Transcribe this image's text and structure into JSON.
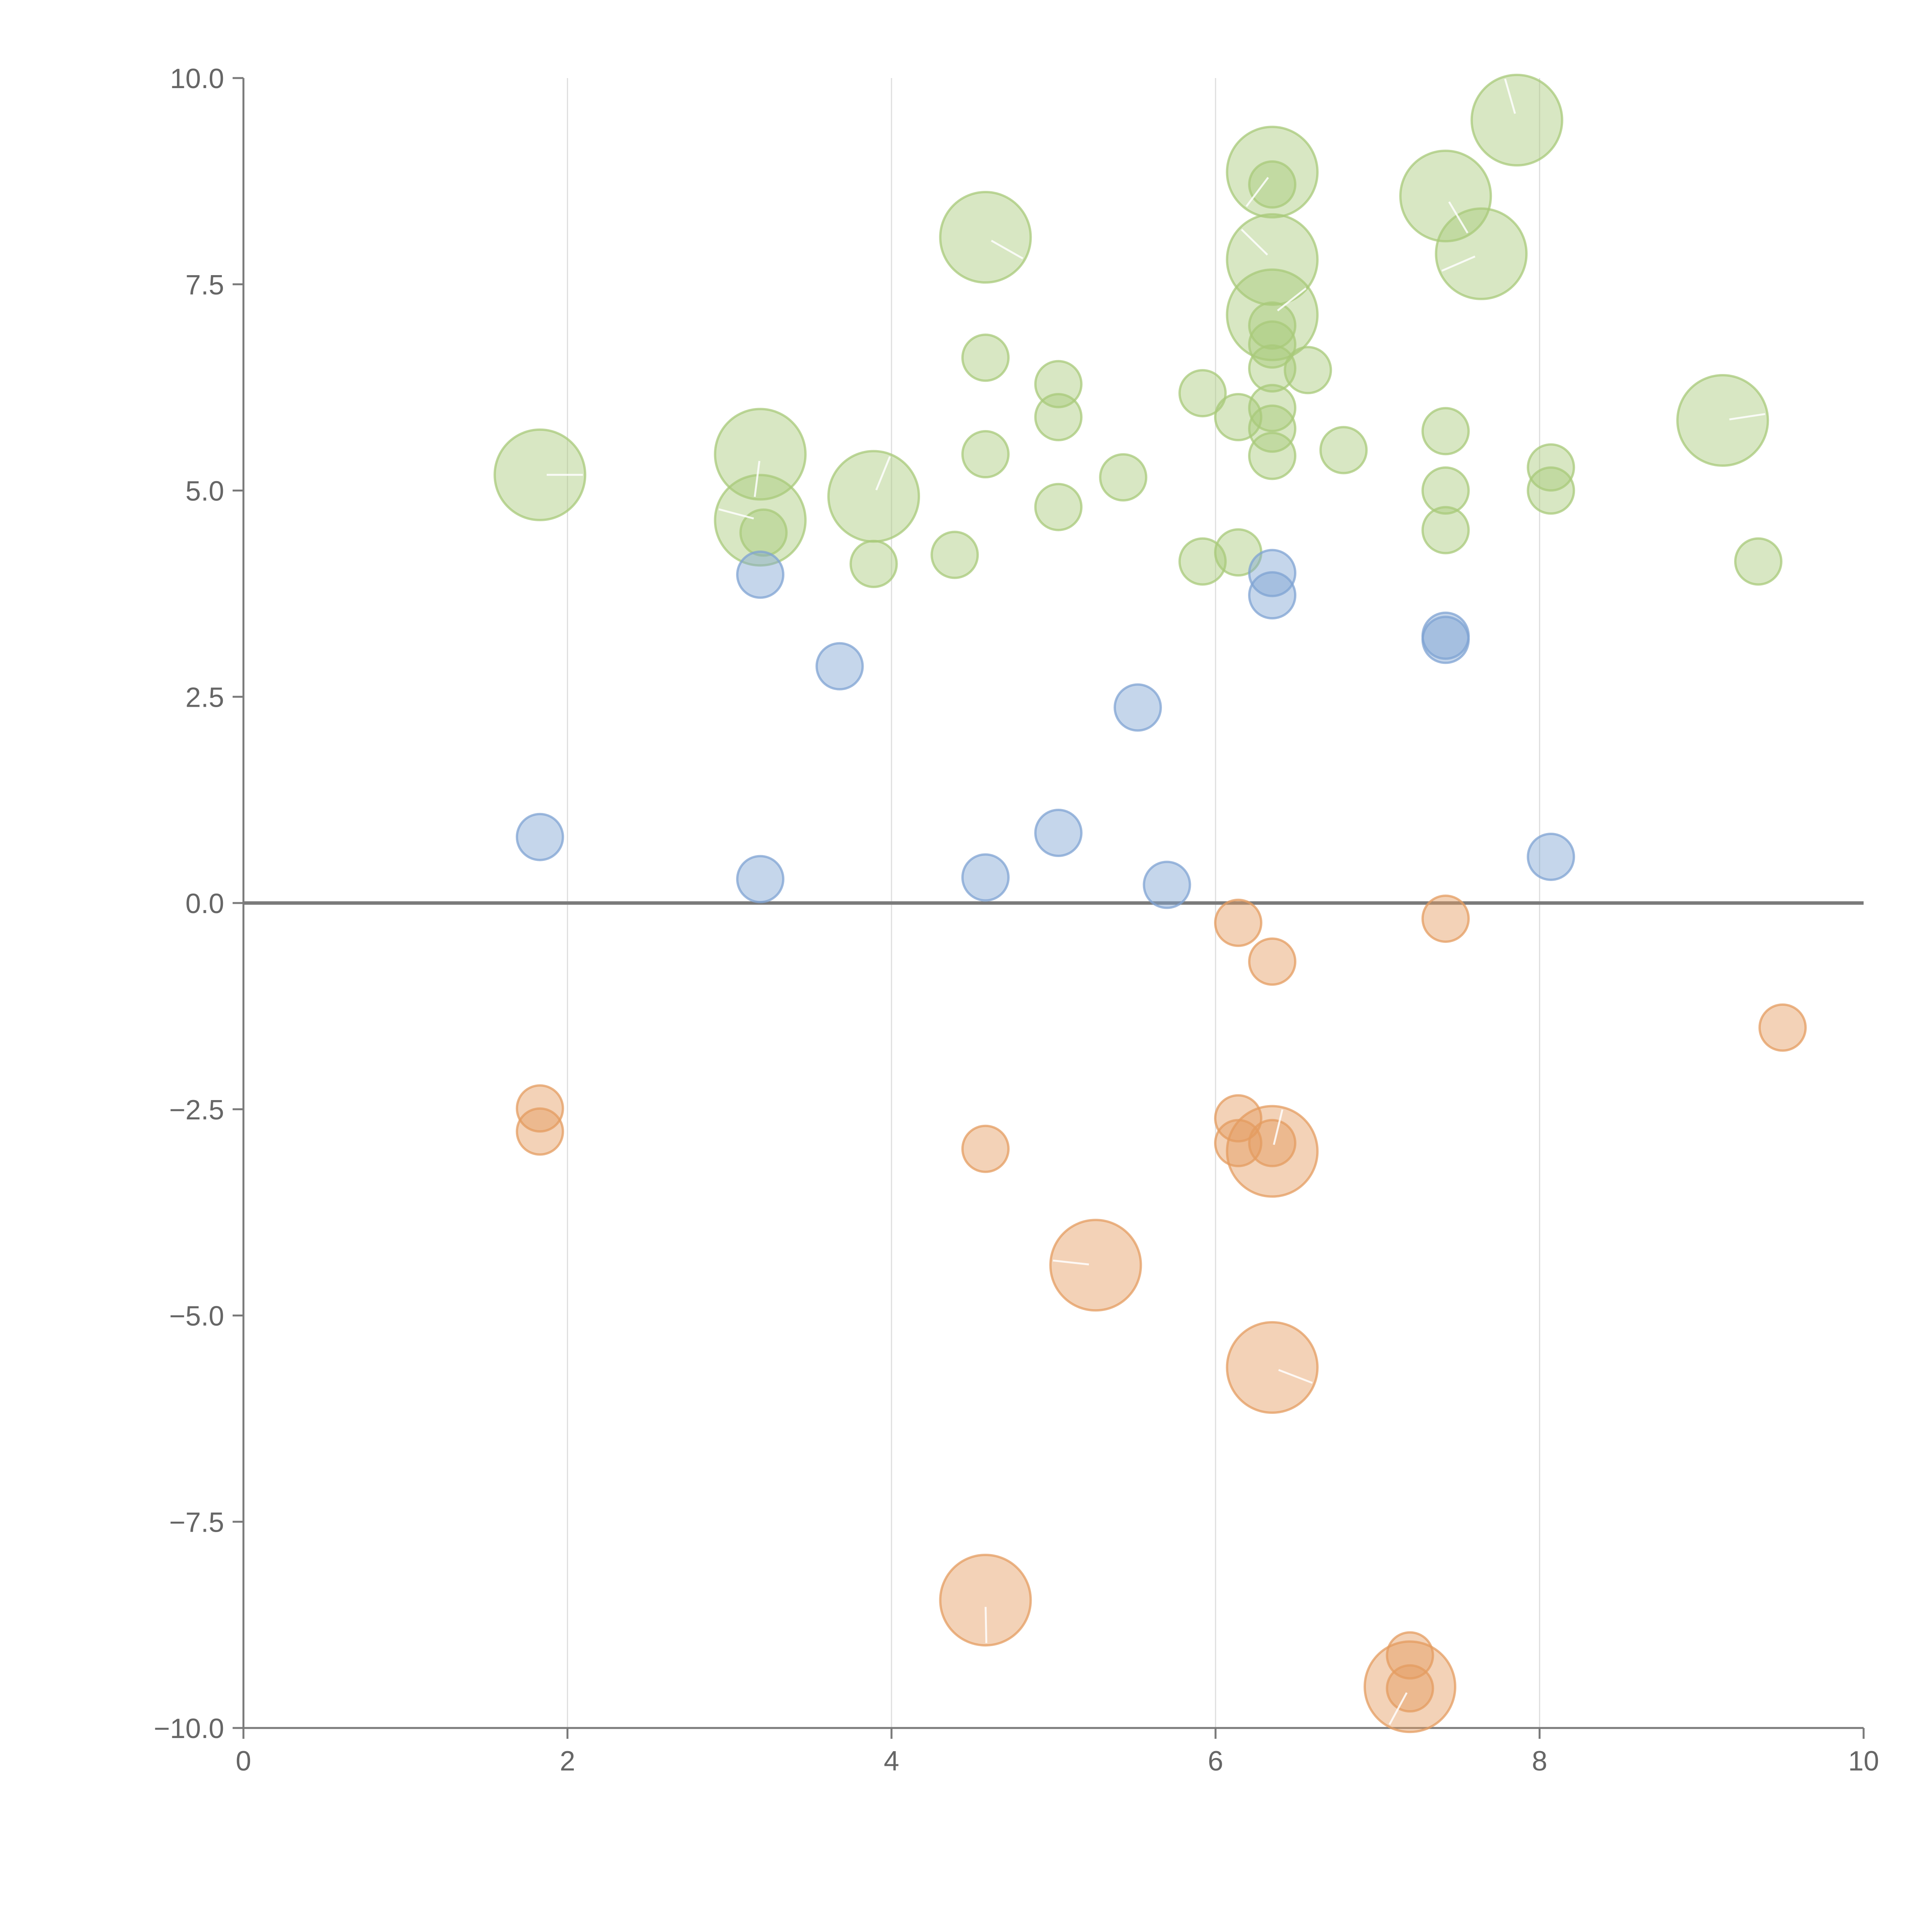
{
  "chart_data": {
    "type": "scatter",
    "subtype": "bubble",
    "title": "",
    "xlabel": "",
    "ylabel": "",
    "xlim": [
      0,
      10
    ],
    "ylim": [
      -10,
      10
    ],
    "grid": "vertical",
    "x_ticks": [
      "0",
      "2",
      "4",
      "6",
      "8",
      "10"
    ],
    "y_ticks": [
      "10.0",
      "7.5",
      "5.0",
      "2.5",
      "0.0",
      "−2.5",
      "−5.0",
      "−7.5",
      "−10.0"
    ],
    "colors": {
      "green": "#a8c97a",
      "blue": "#7fa3d3",
      "orange": "#e49c60"
    },
    "series": [
      {
        "name": "green",
        "points": [
          {
            "x": 1.83,
            "y": 5.19,
            "size": 4.0
          },
          {
            "x": 3.19,
            "y": 5.44,
            "size": 4.0
          },
          {
            "x": 3.19,
            "y": 4.64,
            "size": 4.0
          },
          {
            "x": 3.21,
            "y": 4.49,
            "size": 1.5
          },
          {
            "x": 3.89,
            "y": 4.93,
            "size": 4.0
          },
          {
            "x": 3.89,
            "y": 4.11,
            "size": 1.5
          },
          {
            "x": 4.39,
            "y": 4.22,
            "size": 1.5
          },
          {
            "x": 4.58,
            "y": 8.07,
            "size": 4.0
          },
          {
            "x": 4.58,
            "y": 6.61,
            "size": 1.5
          },
          {
            "x": 4.58,
            "y": 5.44,
            "size": 1.5
          },
          {
            "x": 5.03,
            "y": 6.29,
            "size": 1.5
          },
          {
            "x": 5.03,
            "y": 5.89,
            "size": 1.5
          },
          {
            "x": 5.03,
            "y": 4.8,
            "size": 1.5
          },
          {
            "x": 5.43,
            "y": 5.16,
            "size": 1.5
          },
          {
            "x": 5.92,
            "y": 6.18,
            "size": 1.5
          },
          {
            "x": 5.92,
            "y": 4.14,
            "size": 1.5
          },
          {
            "x": 6.14,
            "y": 5.89,
            "size": 1.5
          },
          {
            "x": 6.14,
            "y": 4.25,
            "size": 1.5
          },
          {
            "x": 6.35,
            "y": 8.86,
            "size": 4.0
          },
          {
            "x": 6.35,
            "y": 8.71,
            "size": 1.5
          },
          {
            "x": 6.35,
            "y": 7.8,
            "size": 4.0
          },
          {
            "x": 6.35,
            "y": 7.13,
            "size": 4.0
          },
          {
            "x": 6.35,
            "y": 7.0,
            "size": 1.5
          },
          {
            "x": 6.35,
            "y": 6.77,
            "size": 1.5
          },
          {
            "x": 6.35,
            "y": 6.48,
            "size": 1.5
          },
          {
            "x": 6.35,
            "y": 6.0,
            "size": 1.5
          },
          {
            "x": 6.35,
            "y": 5.75,
            "size": 1.5
          },
          {
            "x": 6.35,
            "y": 5.42,
            "size": 1.5
          },
          {
            "x": 6.57,
            "y": 6.46,
            "size": 1.5
          },
          {
            "x": 6.79,
            "y": 5.49,
            "size": 1.5
          },
          {
            "x": 7.42,
            "y": 8.57,
            "size": 4.0
          },
          {
            "x": 7.42,
            "y": 5.72,
            "size": 1.5
          },
          {
            "x": 7.42,
            "y": 5.0,
            "size": 1.5
          },
          {
            "x": 7.42,
            "y": 4.52,
            "size": 1.5
          },
          {
            "x": 7.64,
            "y": 7.87,
            "size": 4.0
          },
          {
            "x": 7.86,
            "y": 9.49,
            "size": 4.0
          },
          {
            "x": 8.07,
            "y": 5.28,
            "size": 1.5
          },
          {
            "x": 8.07,
            "y": 5.0,
            "size": 1.5
          },
          {
            "x": 9.13,
            "y": 5.85,
            "size": 4.0
          },
          {
            "x": 9.35,
            "y": 4.14,
            "size": 1.5
          }
        ]
      },
      {
        "name": "blue",
        "points": [
          {
            "x": 1.83,
            "y": 0.8,
            "size": 1.5
          },
          {
            "x": 3.19,
            "y": 3.98,
            "size": 1.5
          },
          {
            "x": 3.19,
            "y": 0.29,
            "size": 1.5
          },
          {
            "x": 3.68,
            "y": 2.87,
            "size": 1.5
          },
          {
            "x": 4.58,
            "y": 0.31,
            "size": 1.5
          },
          {
            "x": 5.03,
            "y": 0.85,
            "size": 1.5
          },
          {
            "x": 5.52,
            "y": 2.37,
            "size": 1.5
          },
          {
            "x": 5.7,
            "y": 0.22,
            "size": 1.5
          },
          {
            "x": 6.35,
            "y": 4.0,
            "size": 1.5
          },
          {
            "x": 6.35,
            "y": 3.73,
            "size": 1.5
          },
          {
            "x": 7.42,
            "y": 3.24,
            "size": 1.5
          },
          {
            "x": 7.42,
            "y": 3.19,
            "size": 1.5
          },
          {
            "x": 8.07,
            "y": 0.56,
            "size": 1.5
          }
        ]
      },
      {
        "name": "orange",
        "points": [
          {
            "x": 1.83,
            "y": -2.49,
            "size": 1.5
          },
          {
            "x": 1.83,
            "y": -2.77,
            "size": 1.5
          },
          {
            "x": 4.58,
            "y": -2.98,
            "size": 1.5
          },
          {
            "x": 4.58,
            "y": -8.45,
            "size": 4.0
          },
          {
            "x": 5.26,
            "y": -4.39,
            "size": 4.0
          },
          {
            "x": 6.14,
            "y": -0.24,
            "size": 1.5
          },
          {
            "x": 6.14,
            "y": -2.61,
            "size": 1.5
          },
          {
            "x": 6.14,
            "y": -2.91,
            "size": 1.5
          },
          {
            "x": 6.35,
            "y": -0.71,
            "size": 1.5
          },
          {
            "x": 6.35,
            "y": -2.91,
            "size": 1.5
          },
          {
            "x": 6.35,
            "y": -3.01,
            "size": 4.0
          },
          {
            "x": 6.35,
            "y": -5.63,
            "size": 4.0
          },
          {
            "x": 7.2,
            "y": -9.12,
            "size": 1.5
          },
          {
            "x": 7.2,
            "y": -9.5,
            "size": 4.0
          },
          {
            "x": 7.2,
            "y": -9.52,
            "size": 1.5
          },
          {
            "x": 7.42,
            "y": -0.19,
            "size": 1.5
          },
          {
            "x": 9.5,
            "y": -1.51,
            "size": 1.5
          }
        ]
      }
    ]
  }
}
